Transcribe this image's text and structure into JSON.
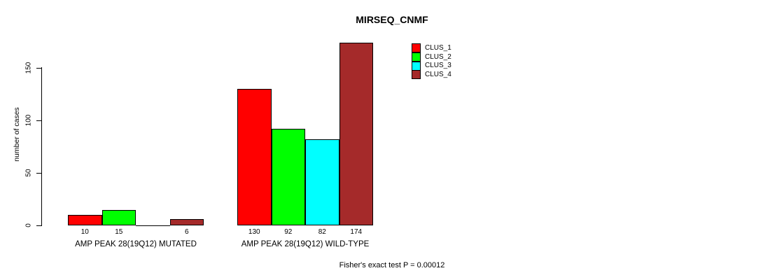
{
  "title": "MIRSEQ_CNMF",
  "axis": {
    "ylabel": "number of cases"
  },
  "footer": "Fisher's exact test P = 0.00012",
  "legend": {
    "items": [
      {
        "label": "CLUS_1",
        "color": "#FF0000"
      },
      {
        "label": "CLUS_2",
        "color": "#00FF00"
      },
      {
        "label": "CLUS_3",
        "color": "#00FFFF"
      },
      {
        "label": "CLUS_4",
        "color": "#A52A2A"
      }
    ]
  },
  "chart_data": {
    "type": "bar",
    "title": "MIRSEQ_CNMF",
    "xlabel": "",
    "ylabel": "number of cases",
    "categories": [
      "AMP PEAK 28(19Q12) MUTATED",
      "AMP PEAK 28(19Q12) WILD-TYPE"
    ],
    "series": [
      {
        "name": "CLUS_1",
        "color": "#FF0000",
        "values": [
          10,
          130
        ],
        "labels": [
          "10",
          "130"
        ]
      },
      {
        "name": "CLUS_2",
        "color": "#00FF00",
        "values": [
          15,
          92
        ],
        "labels": [
          "15",
          "92"
        ]
      },
      {
        "name": "CLUS_3",
        "color": "#00FFFF",
        "values": [
          0,
          82
        ],
        "labels": [
          "",
          "82"
        ]
      },
      {
        "name": "CLUS_4",
        "color": "#A52A2A",
        "values": [
          6,
          174
        ],
        "labels": [
          "6",
          "174"
        ]
      }
    ],
    "ylim": [
      0,
      175
    ],
    "yticks": [
      0,
      50,
      100,
      150
    ],
    "grid": false,
    "legend_position": "top-right",
    "annotation": "Fisher's exact test P = 0.00012"
  }
}
